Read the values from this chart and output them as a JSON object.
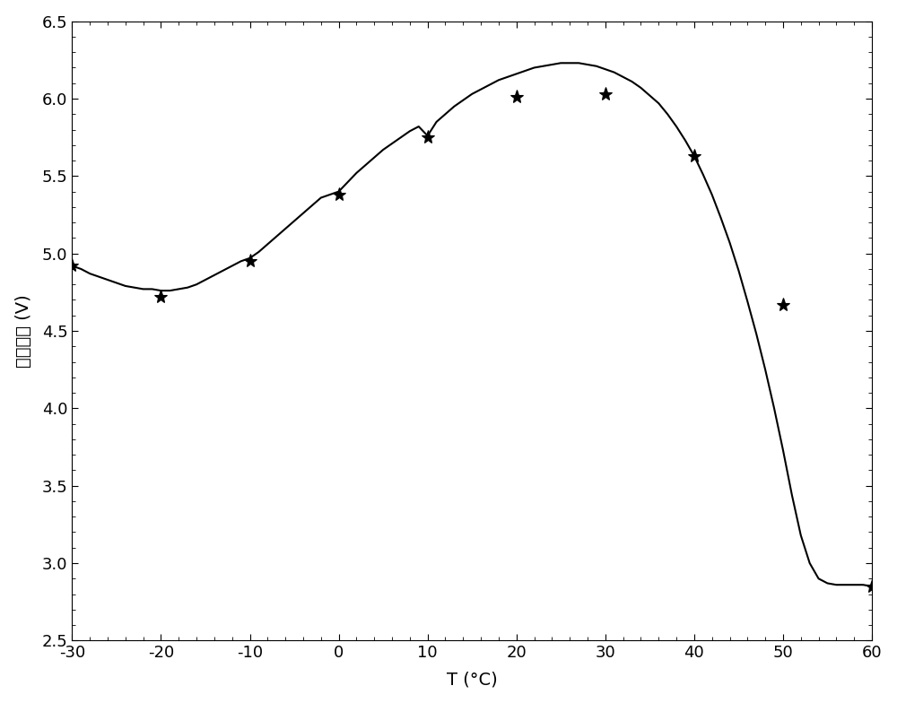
{
  "scatter_x": [
    -30,
    -20,
    -10,
    0,
    10,
    20,
    30,
    40,
    50,
    60
  ],
  "scatter_y": [
    4.92,
    4.72,
    4.95,
    5.38,
    5.75,
    6.01,
    6.03,
    5.63,
    4.67,
    2.85
  ],
  "curve_x": [
    -30,
    -29,
    -28,
    -27,
    -26,
    -25,
    -24,
    -23,
    -22,
    -21,
    -20,
    -19,
    -18,
    -17,
    -16,
    -15,
    -14,
    -13,
    -12,
    -11,
    -10,
    -9,
    -8,
    -7,
    -6,
    -5,
    -4,
    -3,
    -2,
    -1,
    0,
    1,
    2,
    3,
    4,
    5,
    6,
    7,
    8,
    9,
    10,
    11,
    12,
    13,
    14,
    15,
    16,
    17,
    18,
    19,
    20,
    21,
    22,
    23,
    24,
    25,
    26,
    27,
    28,
    29,
    30,
    31,
    32,
    33,
    34,
    35,
    36,
    37,
    38,
    39,
    40,
    41,
    42,
    43,
    44,
    45,
    46,
    47,
    48,
    49,
    50,
    51,
    52,
    53,
    54,
    55,
    56,
    57,
    58,
    59,
    60
  ],
  "curve_y": [
    4.92,
    4.9,
    4.87,
    4.85,
    4.83,
    4.81,
    4.79,
    4.78,
    4.77,
    4.77,
    4.76,
    4.76,
    4.77,
    4.78,
    4.8,
    4.83,
    4.86,
    4.89,
    4.92,
    4.95,
    4.97,
    5.01,
    5.06,
    5.11,
    5.16,
    5.21,
    5.26,
    5.31,
    5.36,
    5.38,
    5.4,
    5.46,
    5.52,
    5.57,
    5.62,
    5.67,
    5.71,
    5.75,
    5.79,
    5.82,
    5.76,
    5.85,
    5.9,
    5.95,
    5.99,
    6.03,
    6.06,
    6.09,
    6.12,
    6.14,
    6.16,
    6.18,
    6.2,
    6.21,
    6.22,
    6.23,
    6.23,
    6.23,
    6.22,
    6.21,
    6.19,
    6.17,
    6.14,
    6.11,
    6.07,
    6.02,
    5.97,
    5.9,
    5.82,
    5.73,
    5.63,
    5.51,
    5.38,
    5.23,
    5.07,
    4.89,
    4.69,
    4.48,
    4.25,
    4.0,
    3.73,
    3.44,
    3.18,
    3.0,
    2.9,
    2.87,
    2.86,
    2.86,
    2.86,
    2.86,
    2.85
  ],
  "xlabel": "T (°C)",
  "ylabel": "补偿电压 (V)",
  "xlim": [
    -30,
    60
  ],
  "ylim": [
    2.5,
    6.5
  ],
  "xticks": [
    -30,
    -20,
    -10,
    0,
    10,
    20,
    30,
    40,
    50,
    60
  ],
  "yticks": [
    2.5,
    3.0,
    3.5,
    4.0,
    4.5,
    5.0,
    5.5,
    6.0,
    6.5
  ],
  "line_color": "#000000",
  "marker_color": "#000000",
  "background_color": "#ffffff",
  "font_size_labels": 14,
  "tick_label_size": 13,
  "line_width": 1.5,
  "marker_size": 11,
  "figure_width": 10.0,
  "figure_height": 7.84
}
